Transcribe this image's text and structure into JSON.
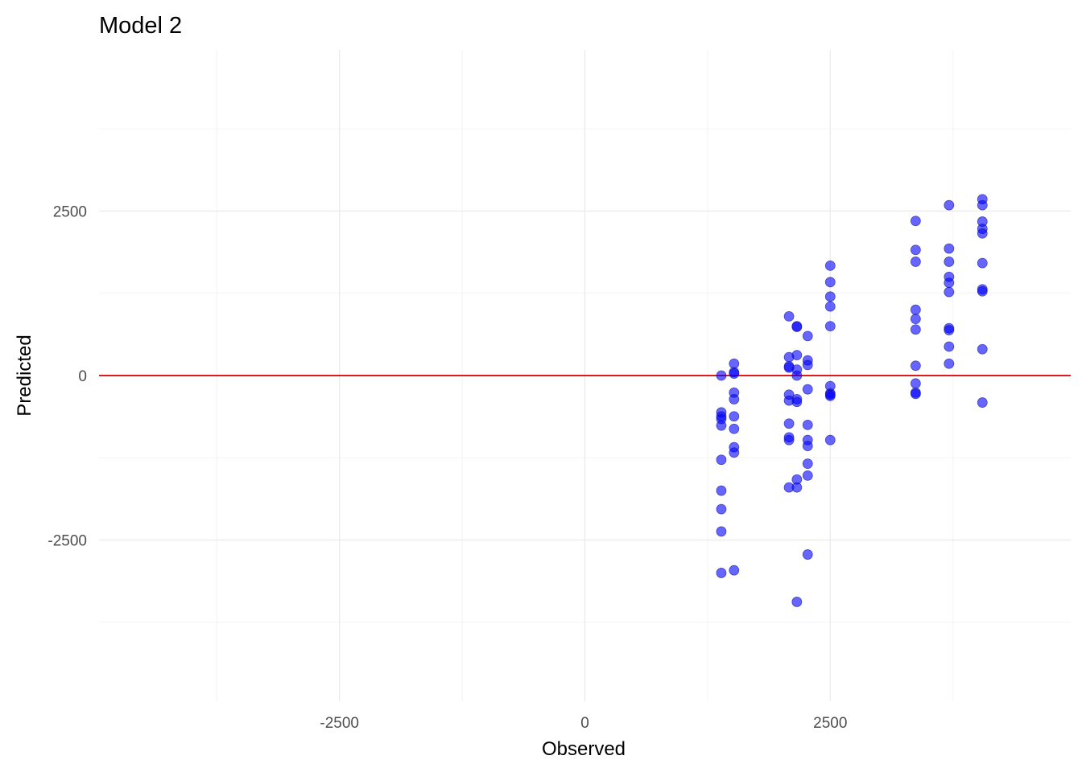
{
  "chart_data": {
    "type": "scatter",
    "title": "Model 2",
    "xlabel": "Observed",
    "ylabel": "Predicted",
    "xlim": [
      -4950,
      4950
    ],
    "ylim": [
      -4950,
      4950
    ],
    "x_ticks": [
      -2500,
      0,
      2500
    ],
    "y_ticks": [
      -2500,
      0,
      2500
    ],
    "x_minor": [
      -3750,
      -1250,
      1250,
      3750
    ],
    "y_minor": [
      -3750,
      -1250,
      1250,
      3750
    ],
    "grid": true,
    "point_color": "#0000ff",
    "point_opacity": 0.6,
    "reference_line": {
      "type": "horizontal",
      "y": 0,
      "color": "#e31a1c"
    },
    "points": [
      {
        "x": 1390,
        "y": 0
      },
      {
        "x": 1390,
        "y": -560
      },
      {
        "x": 1390,
        "y": -620
      },
      {
        "x": 1390,
        "y": -660
      },
      {
        "x": 1390,
        "y": -760
      },
      {
        "x": 1390,
        "y": -1280
      },
      {
        "x": 1390,
        "y": -1750
      },
      {
        "x": 1390,
        "y": -2030
      },
      {
        "x": 1390,
        "y": -2370
      },
      {
        "x": 1390,
        "y": -3000
      },
      {
        "x": 1520,
        "y": 180
      },
      {
        "x": 1520,
        "y": 50
      },
      {
        "x": 1520,
        "y": 30
      },
      {
        "x": 1520,
        "y": -260
      },
      {
        "x": 1520,
        "y": -360
      },
      {
        "x": 1520,
        "y": -620
      },
      {
        "x": 1520,
        "y": -810
      },
      {
        "x": 1520,
        "y": -1090
      },
      {
        "x": 1520,
        "y": -1170
      },
      {
        "x": 1520,
        "y": -2960
      },
      {
        "x": 2080,
        "y": 900
      },
      {
        "x": 2080,
        "y": 280
      },
      {
        "x": 2080,
        "y": 140
      },
      {
        "x": 2080,
        "y": 120
      },
      {
        "x": 2080,
        "y": -290
      },
      {
        "x": 2080,
        "y": -380
      },
      {
        "x": 2080,
        "y": -730
      },
      {
        "x": 2080,
        "y": -940
      },
      {
        "x": 2080,
        "y": -980
      },
      {
        "x": 2080,
        "y": -1700
      },
      {
        "x": 2160,
        "y": 750
      },
      {
        "x": 2160,
        "y": 740
      },
      {
        "x": 2160,
        "y": 310
      },
      {
        "x": 2160,
        "y": 90
      },
      {
        "x": 2160,
        "y": 0
      },
      {
        "x": 2160,
        "y": -360
      },
      {
        "x": 2160,
        "y": -400
      },
      {
        "x": 2160,
        "y": -1580
      },
      {
        "x": 2160,
        "y": -1700
      },
      {
        "x": 2160,
        "y": -3440
      },
      {
        "x": 2270,
        "y": 600
      },
      {
        "x": 2270,
        "y": 230
      },
      {
        "x": 2270,
        "y": 160
      },
      {
        "x": 2270,
        "y": -210
      },
      {
        "x": 2270,
        "y": -750
      },
      {
        "x": 2270,
        "y": -980
      },
      {
        "x": 2270,
        "y": -1070
      },
      {
        "x": 2270,
        "y": -1340
      },
      {
        "x": 2270,
        "y": -1520
      },
      {
        "x": 2270,
        "y": -2720
      },
      {
        "x": 2500,
        "y": 1670
      },
      {
        "x": 2500,
        "y": 1420
      },
      {
        "x": 2500,
        "y": 1200
      },
      {
        "x": 2500,
        "y": 1050
      },
      {
        "x": 2500,
        "y": 750
      },
      {
        "x": 2500,
        "y": -160
      },
      {
        "x": 2500,
        "y": -270
      },
      {
        "x": 2500,
        "y": -290
      },
      {
        "x": 2500,
        "y": -310
      },
      {
        "x": 2500,
        "y": -980
      },
      {
        "x": 3370,
        "y": 2350
      },
      {
        "x": 3370,
        "y": 1910
      },
      {
        "x": 3370,
        "y": 1730
      },
      {
        "x": 3370,
        "y": 1000
      },
      {
        "x": 3370,
        "y": 860
      },
      {
        "x": 3370,
        "y": 700
      },
      {
        "x": 3370,
        "y": 150
      },
      {
        "x": 3370,
        "y": -120
      },
      {
        "x": 3370,
        "y": -260
      },
      {
        "x": 3370,
        "y": -280
      },
      {
        "x": 3710,
        "y": 2590
      },
      {
        "x": 3710,
        "y": 1930
      },
      {
        "x": 3710,
        "y": 1730
      },
      {
        "x": 3710,
        "y": 1500
      },
      {
        "x": 3710,
        "y": 1410
      },
      {
        "x": 3710,
        "y": 1270
      },
      {
        "x": 3710,
        "y": 720
      },
      {
        "x": 3710,
        "y": 690
      },
      {
        "x": 3710,
        "y": 440
      },
      {
        "x": 3710,
        "y": 180
      },
      {
        "x": 4050,
        "y": 2680
      },
      {
        "x": 4050,
        "y": 2590
      },
      {
        "x": 4050,
        "y": 2340
      },
      {
        "x": 4050,
        "y": 2230
      },
      {
        "x": 4050,
        "y": 2160
      },
      {
        "x": 4050,
        "y": 1710
      },
      {
        "x": 4050,
        "y": 1310
      },
      {
        "x": 4050,
        "y": 1280
      },
      {
        "x": 4050,
        "y": 400
      },
      {
        "x": 4050,
        "y": -410
      }
    ]
  }
}
